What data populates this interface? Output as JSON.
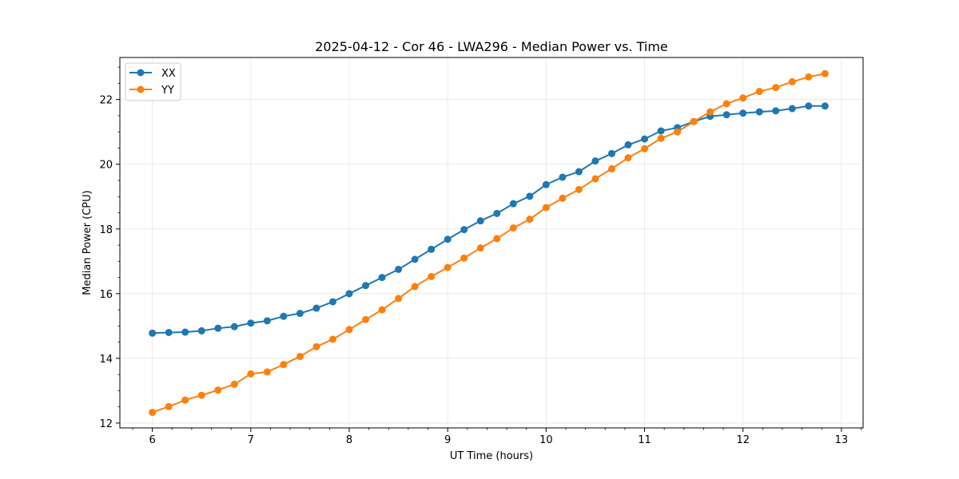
{
  "chart_data": {
    "type": "line",
    "title": "2025-04-12 - Cor 46 - LWA296 - Median Power vs. Time",
    "xlabel": "UT Time (hours)",
    "ylabel": "Median Power (CPU)",
    "xlim": [
      5.67,
      13.22
    ],
    "ylim": [
      11.85,
      23.3
    ],
    "x_ticks": [
      6,
      7,
      8,
      9,
      10,
      11,
      12,
      13
    ],
    "y_ticks": [
      12,
      14,
      16,
      18,
      20,
      22
    ],
    "grid": true,
    "legend_position": "top-left",
    "x": [
      6.0,
      6.1667,
      6.3333,
      6.5,
      6.6667,
      6.8333,
      7.0,
      7.1667,
      7.3333,
      7.5,
      7.6667,
      7.8333,
      8.0,
      8.1667,
      8.3333,
      8.5,
      8.6667,
      8.8333,
      9.0,
      9.1667,
      9.3333,
      9.5,
      9.6667,
      9.8333,
      10.0,
      10.1667,
      10.3333,
      10.5,
      10.6667,
      10.8333,
      11.0,
      11.1667,
      11.3333,
      11.5,
      11.6667,
      11.8333,
      12.0,
      12.1667,
      12.3333,
      12.5,
      12.6667,
      12.8333
    ],
    "series": [
      {
        "name": "XX",
        "color": "#1f77b4",
        "values": [
          14.78,
          14.8,
          14.81,
          14.85,
          14.93,
          14.98,
          15.09,
          15.16,
          15.3,
          15.39,
          15.55,
          15.75,
          16.0,
          16.25,
          16.5,
          16.75,
          17.06,
          17.37,
          17.68,
          17.98,
          18.25,
          18.48,
          18.78,
          19.01,
          19.37,
          19.6,
          19.77,
          20.1,
          20.33,
          20.6,
          20.78,
          21.03,
          21.13,
          21.32,
          21.48,
          21.53,
          21.58,
          21.62,
          21.65,
          21.72,
          21.8,
          21.8
        ]
      },
      {
        "name": "YY",
        "color": "#ff7f0e",
        "values": [
          12.33,
          12.51,
          12.71,
          12.86,
          13.02,
          13.2,
          13.52,
          13.58,
          13.81,
          14.06,
          14.36,
          14.59,
          14.89,
          15.2,
          15.5,
          15.85,
          16.22,
          16.53,
          16.81,
          17.1,
          17.41,
          17.7,
          18.03,
          18.3,
          18.66,
          18.95,
          19.22,
          19.55,
          19.86,
          20.2,
          20.48,
          20.8,
          21.0,
          21.32,
          21.62,
          21.87,
          22.05,
          22.25,
          22.37,
          22.55,
          22.7,
          22.8
        ]
      }
    ]
  }
}
